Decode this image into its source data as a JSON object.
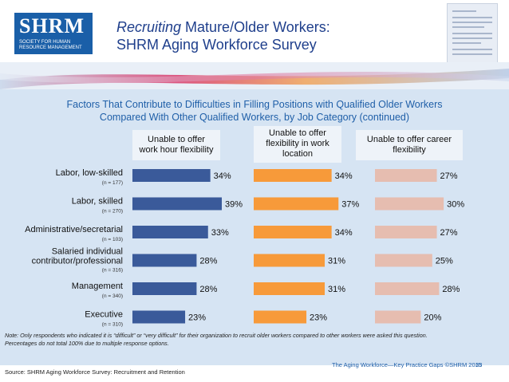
{
  "header": {
    "logo_text": "SHRM",
    "logo_subtitle": "SOCIETY FOR HUMAN RESOURCE MANAGEMENT",
    "title_italic": "Recruiting",
    "title_rest": " Mature/Older Workers:",
    "subtitle": "SHRM Aging Workforce Survey"
  },
  "chart_data": {
    "type": "bar",
    "orientation": "horizontal",
    "title_line1": "Factors That Contribute to Difficulties in Filling Positions with Qualified Older Workers",
    "title_line2": "Compared With Other Qualified Workers, by Job Category (continued)",
    "categories": [
      {
        "label": "Labor, low-skilled",
        "n": "(n = 177)"
      },
      {
        "label": "Labor, skilled",
        "n": "(n = 270)"
      },
      {
        "label": "Administrative/secretarial",
        "n": "(n = 103)"
      },
      {
        "label_lines": [
          "Salaried individual",
          "contributor/professional"
        ],
        "n": "(n = 316)"
      },
      {
        "label": "Management",
        "n": "(n = 340)"
      },
      {
        "label": "Executive",
        "n": "(n = 310)"
      }
    ],
    "series": [
      {
        "name": "Unable to offer work hour flexibility",
        "name_lines": [
          "Unable to offer",
          "work hour flexibility"
        ],
        "color": "#3a5a9a",
        "values": [
          34,
          39,
          33,
          28,
          28,
          23
        ]
      },
      {
        "name": "Unable to offer flexibility in work location",
        "name_lines": [
          "Unable to offer",
          "flexibility in work",
          "location"
        ],
        "color": "#f79a3a",
        "values": [
          34,
          37,
          34,
          31,
          31,
          23
        ]
      },
      {
        "name": "Unable to offer career flexibility",
        "name_lines": [
          "Unable to offer career",
          "flexibility"
        ],
        "color": "#e6bdb0",
        "values": [
          27,
          30,
          27,
          25,
          28,
          20
        ]
      }
    ],
    "value_suffix": "%",
    "xlim": [
      0,
      39
    ]
  },
  "notes": {
    "line1": "Note: Only respondents who indicated it is “difficult” or “very difficult” for their organization to recruit older workers compared to other workers were asked this question.",
    "line2": "Percentages do not total 100% due to multiple response options."
  },
  "footer": {
    "right_text": "The Aging Workforce—Key Practice Gaps ©SHRM 2015",
    "page_number": "33",
    "source": "Source: SHRM Aging Workforce Survey: Recruitment and Retention"
  }
}
